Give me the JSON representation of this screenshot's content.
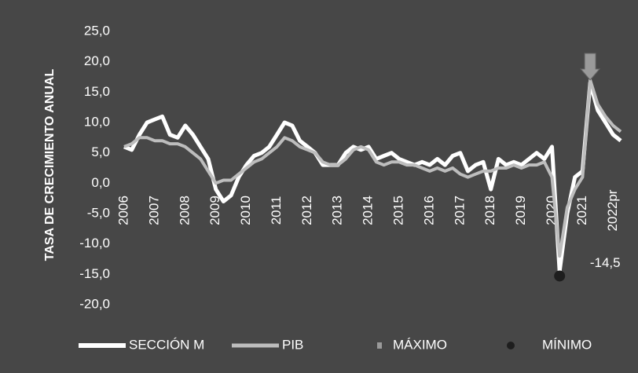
{
  "chart_data": {
    "type": "line",
    "y_axis_label": "TASA DE CRECIMIENTO ANUAL",
    "categories": [
      "2006",
      null,
      null,
      null,
      "2007",
      null,
      null,
      null,
      "2008",
      null,
      null,
      null,
      "2009",
      null,
      null,
      null,
      "2010",
      null,
      null,
      null,
      "2011",
      null,
      null,
      null,
      "2012",
      null,
      null,
      null,
      "2013",
      null,
      null,
      null,
      "2014",
      null,
      null,
      null,
      "2015",
      null,
      null,
      null,
      "2016",
      null,
      null,
      null,
      "2017",
      null,
      null,
      null,
      "2018",
      null,
      null,
      null,
      "2019",
      null,
      null,
      null,
      "2020",
      null,
      null,
      null,
      "2021",
      null,
      null,
      null,
      "2022pr",
      null
    ],
    "series": [
      {
        "name": "SECCIÓN M",
        "color": "#ffffff",
        "values": [
          6,
          5.5,
          8,
          10,
          10.5,
          11,
          8,
          7.5,
          9.5,
          8,
          6,
          4,
          -1,
          -3,
          -2,
          1,
          3,
          4.5,
          5,
          6,
          8,
          10,
          9.5,
          7,
          6,
          5,
          3,
          3,
          3,
          5,
          6,
          5.5,
          6,
          4,
          4.5,
          5,
          4,
          3.5,
          3,
          3.5,
          3,
          4,
          3,
          4.5,
          5,
          2,
          3,
          3.5,
          -1,
          4,
          3,
          3.5,
          3,
          4,
          5,
          4,
          6,
          -14.5,
          -5,
          1,
          2,
          16.5,
          12,
          10,
          8,
          7
        ]
      },
      {
        "name": "PIB",
        "color": "#bdbdbd",
        "values": [
          6,
          6.5,
          7.5,
          7.5,
          7,
          7,
          6.5,
          6.5,
          6,
          5,
          4,
          2,
          0,
          0.5,
          0.5,
          1.5,
          2.5,
          3.5,
          4,
          5,
          6,
          7.5,
          7,
          6,
          5.5,
          5,
          3.5,
          3,
          3,
          4,
          5.5,
          6,
          5.5,
          3.5,
          3,
          3.5,
          3.5,
          3,
          3,
          2.5,
          2,
          2.5,
          2,
          2.5,
          1.5,
          1,
          1.5,
          2,
          2,
          2.5,
          2.5,
          3,
          2.5,
          3,
          3,
          3.5,
          1,
          -12,
          -4,
          -1,
          1,
          17,
          13,
          11,
          9.5,
          8.5
        ]
      },
      {
        "name": "MÁXIMO",
        "color": "#9a9a9a",
        "values": [
          null,
          null,
          null,
          null,
          null,
          null,
          null,
          null,
          null,
          null,
          null,
          null,
          null,
          null,
          null,
          null,
          null,
          null,
          null,
          null,
          null,
          null,
          null,
          null,
          null,
          null,
          null,
          null,
          null,
          null,
          null,
          null,
          null,
          null,
          null,
          null,
          null,
          null,
          null,
          null,
          null,
          null,
          null,
          null,
          null,
          null,
          null,
          null,
          null,
          null,
          null,
          null,
          null,
          null,
          null,
          null,
          null,
          null,
          null,
          null,
          null,
          17,
          null,
          null,
          null,
          null
        ]
      },
      {
        "name": "MÍNIMO",
        "color": "#1e1e1e",
        "values": [
          null,
          null,
          null,
          null,
          null,
          null,
          null,
          null,
          null,
          null,
          null,
          null,
          null,
          null,
          null,
          null,
          null,
          null,
          null,
          null,
          null,
          null,
          null,
          null,
          null,
          null,
          null,
          null,
          null,
          null,
          null,
          null,
          null,
          null,
          null,
          null,
          null,
          null,
          null,
          null,
          null,
          null,
          null,
          null,
          null,
          null,
          null,
          null,
          null,
          null,
          null,
          null,
          null,
          null,
          null,
          null,
          null,
          -14.5,
          null,
          null,
          null,
          null,
          null,
          null,
          null,
          null
        ],
        "value_labels": [
          null,
          null,
          null,
          null,
          null,
          null,
          null,
          null,
          null,
          null,
          null,
          null,
          null,
          null,
          null,
          null,
          null,
          null,
          null,
          null,
          null,
          null,
          null,
          null,
          null,
          null,
          null,
          null,
          null,
          null,
          null,
          null,
          null,
          null,
          null,
          null,
          null,
          null,
          null,
          null,
          null,
          null,
          null,
          null,
          null,
          null,
          null,
          null,
          null,
          null,
          null,
          null,
          null,
          null,
          null,
          null,
          null,
          "-14,5",
          null,
          null,
          null,
          null,
          null,
          null,
          null,
          null
        ]
      }
    ],
    "ylim": [
      -20,
      25
    ],
    "yticks": [
      {
        "value": 25,
        "label": "25,0"
      },
      {
        "value": 20,
        "label": "20,0"
      },
      {
        "value": 15,
        "label": "15,0"
      },
      {
        "value": 10,
        "label": "10,0"
      },
      {
        "value": 5,
        "label": "5,0"
      },
      {
        "value": 0,
        "label": "0,0"
      },
      {
        "value": -5,
        "label": "-5,0"
      },
      {
        "value": -10,
        "label": "-10,0"
      },
      {
        "value": -15,
        "label": "-15,0"
      },
      {
        "value": -20,
        "label": "-20,0"
      }
    ],
    "grid": false
  }
}
